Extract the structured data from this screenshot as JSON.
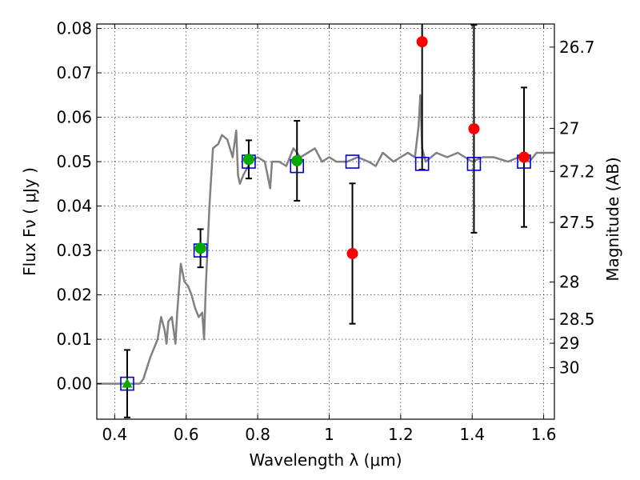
{
  "chart_data": {
    "type": "scatter",
    "xlabel": "Wavelength  λ (μm)",
    "ylabel": "Flux  Fν  ( μJy )",
    "y2label": "Magnitude (AB)",
    "xlim": [
      0.35,
      1.63
    ],
    "ylim": [
      -0.008,
      0.081
    ],
    "grid": true,
    "x_ticks": [
      0.4,
      0.6,
      0.8,
      1.0,
      1.2,
      1.4,
      1.6
    ],
    "x_tick_labels": [
      "0.4",
      "0.6",
      "0.8",
      "1",
      "1.2",
      "1.4",
      "1.6"
    ],
    "y_ticks": [
      0.0,
      0.01,
      0.02,
      0.03,
      0.04,
      0.05,
      0.06,
      0.07,
      0.08
    ],
    "y_tick_labels": [
      "0.00",
      "0.01",
      "0.02",
      "0.03",
      "0.04",
      "0.05",
      "0.06",
      "0.07",
      "0.08"
    ],
    "magnitude_ticks": [
      {
        "label": "26.7",
        "flux": 0.0758
      },
      {
        "label": "27",
        "flux": 0.0575
      },
      {
        "label": "27.2",
        "flux": 0.0478
      },
      {
        "label": "27.5",
        "flux": 0.0363
      },
      {
        "label": "28",
        "flux": 0.0229
      },
      {
        "label": "28.5",
        "flux": 0.0145
      },
      {
        "label": "29",
        "flux": 0.0091
      },
      {
        "label": "30",
        "flux": 0.0036
      }
    ],
    "zero_line": {
      "y": 0.0,
      "style": "dash-dot"
    },
    "series": [
      {
        "kind": "model_spectrum",
        "color": "#808080",
        "points": [
          [
            0.35,
            0.0
          ],
          [
            0.47,
            0.0
          ],
          [
            0.48,
            0.001
          ],
          [
            0.5,
            0.006
          ],
          [
            0.52,
            0.01
          ],
          [
            0.53,
            0.015
          ],
          [
            0.54,
            0.012
          ],
          [
            0.545,
            0.009
          ],
          [
            0.55,
            0.014
          ],
          [
            0.56,
            0.015
          ],
          [
            0.565,
            0.012
          ],
          [
            0.57,
            0.009
          ],
          [
            0.575,
            0.016
          ],
          [
            0.585,
            0.027
          ],
          [
            0.595,
            0.023
          ],
          [
            0.605,
            0.022
          ],
          [
            0.615,
            0.02
          ],
          [
            0.625,
            0.017
          ],
          [
            0.635,
            0.015
          ],
          [
            0.645,
            0.016
          ],
          [
            0.65,
            0.01
          ],
          [
            0.655,
            0.022
          ],
          [
            0.665,
            0.04
          ],
          [
            0.675,
            0.053
          ],
          [
            0.69,
            0.054
          ],
          [
            0.7,
            0.056
          ],
          [
            0.715,
            0.055
          ],
          [
            0.73,
            0.051
          ],
          [
            0.74,
            0.057
          ],
          [
            0.745,
            0.047
          ],
          [
            0.75,
            0.045
          ],
          [
            0.76,
            0.047
          ],
          [
            0.78,
            0.05
          ],
          [
            0.8,
            0.051
          ],
          [
            0.82,
            0.05
          ],
          [
            0.83,
            0.046
          ],
          [
            0.835,
            0.044
          ],
          [
            0.84,
            0.05
          ],
          [
            0.86,
            0.05
          ],
          [
            0.88,
            0.049
          ],
          [
            0.9,
            0.053
          ],
          [
            0.92,
            0.051
          ],
          [
            0.94,
            0.052
          ],
          [
            0.96,
            0.053
          ],
          [
            0.98,
            0.05
          ],
          [
            1.0,
            0.051
          ],
          [
            1.02,
            0.05
          ],
          [
            1.05,
            0.05
          ],
          [
            1.08,
            0.051
          ],
          [
            1.11,
            0.05
          ],
          [
            1.13,
            0.049
          ],
          [
            1.15,
            0.052
          ],
          [
            1.18,
            0.05
          ],
          [
            1.2,
            0.051
          ],
          [
            1.22,
            0.052
          ],
          [
            1.24,
            0.051
          ],
          [
            1.25,
            0.058
          ],
          [
            1.255,
            0.065
          ],
          [
            1.26,
            0.053
          ],
          [
            1.27,
            0.05
          ],
          [
            1.3,
            0.052
          ],
          [
            1.33,
            0.051
          ],
          [
            1.36,
            0.052
          ],
          [
            1.4,
            0.05
          ],
          [
            1.43,
            0.051
          ],
          [
            1.46,
            0.051
          ],
          [
            1.5,
            0.05
          ],
          [
            1.53,
            0.051
          ],
          [
            1.56,
            0.05
          ],
          [
            1.58,
            0.052
          ],
          [
            1.6,
            0.052
          ],
          [
            1.63,
            0.052
          ]
        ]
      },
      {
        "kind": "model_band_flux",
        "marker": "open-square",
        "color": "#0000cc",
        "x": [
          0.435,
          0.64,
          0.775,
          0.91,
          1.065,
          1.26,
          1.405,
          1.545
        ],
        "y": [
          0.0,
          0.03,
          0.05,
          0.049,
          0.05,
          0.0495,
          0.0495,
          0.05
        ]
      },
      {
        "kind": "detection",
        "marker": "filled-circle",
        "color": "#00aa00",
        "x": [
          0.64,
          0.775,
          0.91
        ],
        "y": [
          0.0305,
          0.0505,
          0.0502
        ],
        "yerr": [
          0.0043,
          0.0043,
          0.009
        ]
      },
      {
        "kind": "detection",
        "marker": "filled-triangle",
        "color": "#00aa00",
        "x": [
          0.435
        ],
        "y": [
          0.0
        ],
        "yerr": [
          0.0076
        ]
      },
      {
        "kind": "detection",
        "marker": "filled-circle",
        "color": "#ff0000",
        "x": [
          1.065,
          1.26,
          1.405,
          1.545
        ],
        "y": [
          0.0293,
          0.077,
          0.0574,
          0.051
        ],
        "yerr": [
          0.0158,
          0.0288,
          0.0234,
          0.0157
        ]
      }
    ]
  }
}
